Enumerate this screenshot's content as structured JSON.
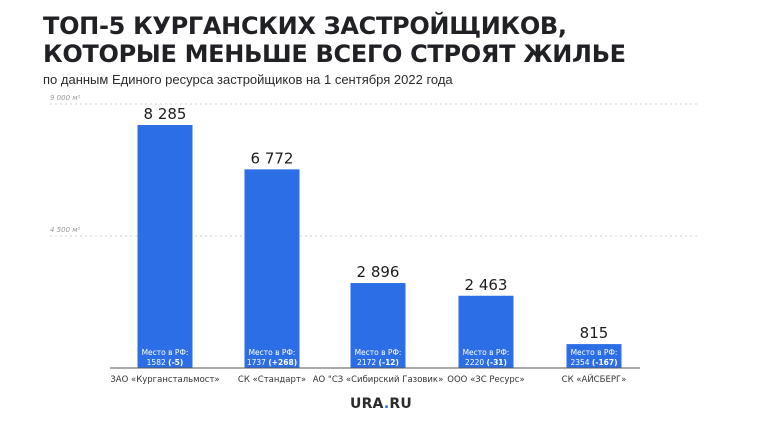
{
  "header": {
    "title_line1": "ТОП-5 КУРГАНСКИХ ЗАСТРОЙЩИКОВ,",
    "title_line2": "КОТОРЫЕ МЕНЬШЕ ВСЕГО СТРОЯТ ЖИЛЬЕ",
    "subtitle": "по данным Единого ресурса застройщиков на 1 сентября 2022 года"
  },
  "logo": {
    "part1": "URA",
    "dot": ".",
    "part2": "RU"
  },
  "rank_prefix": "Место в РФ:",
  "colors": {
    "bar": "#2c6ee6",
    "grid": "#d0d0d0",
    "axis": "#555555"
  },
  "chart_data": {
    "type": "bar",
    "ylim": [
      0,
      9000
    ],
    "grid_lines": [
      {
        "value": 9000,
        "label": "9 000 м²"
      },
      {
        "value": 4500,
        "label": "4 500 м²"
      }
    ],
    "categories": [
      "ЗАО «Курганстальмост»",
      "СК «Стандарт»",
      "АО \"СЗ «Сибирский Газовик»",
      "ООО «ЗС Ресурс»",
      "СК «АЙСБЕРГ»"
    ],
    "values": [
      8285,
      6772,
      2896,
      2463,
      815
    ],
    "value_labels": [
      "8 285",
      "6 772",
      "2 896",
      "2 463",
      "815"
    ],
    "ranks": [
      {
        "place": "1582",
        "change": "(-5)"
      },
      {
        "place": "1737",
        "change": "(+268)"
      },
      {
        "place": "2172",
        "change": "(-12)"
      },
      {
        "place": "2220",
        "change": "(-31)"
      },
      {
        "place": "2354",
        "change": "(-167)"
      }
    ]
  }
}
